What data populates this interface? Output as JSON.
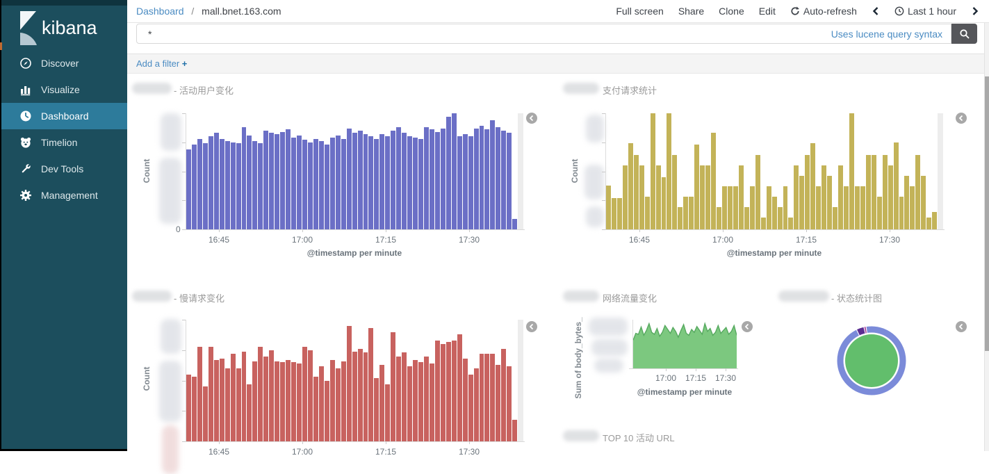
{
  "sidebar": {
    "logo_text": "kibana",
    "items": [
      {
        "label": "Discover",
        "icon": "compass-icon"
      },
      {
        "label": "Visualize",
        "icon": "bar-chart-icon"
      },
      {
        "label": "Dashboard",
        "icon": "dashboard-gauge-icon"
      },
      {
        "label": "Timelion",
        "icon": "bear-icon"
      },
      {
        "label": "Dev Tools",
        "icon": "wrench-icon"
      },
      {
        "label": "Management",
        "icon": "gear-icon"
      }
    ],
    "selected_item": "Dashboard",
    "colors": {
      "bg": "#1C4E5D",
      "selected_bg": "#2D7B9B"
    }
  },
  "topbar": {
    "breadcrumb": {
      "section": "Dashboard",
      "separator": "/",
      "current": "mall.bnet.163.com"
    },
    "actions": [
      {
        "label": "Full screen"
      },
      {
        "label": "Share"
      },
      {
        "label": "Clone"
      },
      {
        "label": "Edit"
      },
      {
        "label": "Auto-refresh",
        "icon": "refresh-icon"
      }
    ],
    "time_range": {
      "label": "Last 1 hour",
      "icon": "clock-icon",
      "prev_icon": "chevron-left-icon",
      "next_icon": "chevron-right-icon"
    }
  },
  "search": {
    "value": "*",
    "hint": "Uses lucene query syntax",
    "button_icon": "search-icon"
  },
  "filter_bar": {
    "add_label": "Add a filter",
    "plus": "+"
  },
  "panels": [
    {
      "title": "- 活动用户变化",
      "redacted_prefix": true
    },
    {
      "title": "支付请求统计",
      "redacted_prefix": true
    },
    {
      "title": "- 慢请求变化",
      "redacted_prefix": true
    },
    {
      "title": "网络流量变化",
      "redacted_prefix": true
    },
    {
      "title": "- 状态统计图",
      "redacted_prefix": true
    },
    {
      "title": "TOP 10 活动 URL",
      "redacted_prefix": true
    }
  ],
  "chart_data": [
    {
      "type": "bar",
      "title": "- 活动用户变化",
      "color": "#6B6FC6",
      "ylabel": "Count",
      "y_origin_label": "0",
      "x_ticks": [
        "16:45",
        "17:00",
        "17:15",
        "17:30"
      ],
      "xlabel": "@timestamp per minute",
      "values": [
        69,
        73,
        78,
        74,
        80,
        83,
        78,
        76,
        75,
        74,
        88,
        81,
        76,
        74,
        85,
        83,
        82,
        84,
        86,
        79,
        81,
        77,
        75,
        78,
        76,
        73,
        79,
        81,
        78,
        87,
        83,
        85,
        82,
        80,
        78,
        82,
        80,
        85,
        88,
        83,
        80,
        79,
        78,
        88,
        86,
        84,
        87,
        97,
        100,
        80,
        82,
        80,
        87,
        89,
        86,
        94,
        88,
        85,
        83,
        9
      ]
    },
    {
      "type": "bar",
      "title": "支付请求统计",
      "color": "#C3B358",
      "ylabel": "Count",
      "x_ticks": [
        "16:45",
        "17:00",
        "17:15",
        "17:30"
      ],
      "xlabel": "@timestamp per minute",
      "values": [
        38,
        27,
        27,
        55,
        74,
        64,
        55,
        28,
        100,
        55,
        45,
        100,
        64,
        19,
        28,
        28,
        73,
        55,
        55,
        83,
        19,
        37,
        37,
        37,
        55,
        19,
        37,
        64,
        10,
        37,
        28,
        19,
        37,
        10,
        55,
        46,
        64,
        74,
        37,
        55,
        46,
        19,
        55,
        37,
        100,
        37,
        37,
        64,
        64,
        28,
        64,
        55,
        75,
        28,
        46,
        37,
        64,
        46,
        10,
        15
      ]
    },
    {
      "type": "bar",
      "title": "- 慢请求变化",
      "color": "#C8625F",
      "ylabel": "Count",
      "x_ticks": [
        "16:45",
        "17:00",
        "17:15",
        "17:30"
      ],
      "xlabel": "@timestamp per minute",
      "values": [
        55,
        53,
        78,
        45,
        78,
        67,
        68,
        60,
        72,
        60,
        74,
        47,
        66,
        78,
        70,
        75,
        66,
        65,
        67,
        65,
        64,
        78,
        75,
        53,
        62,
        50,
        67,
        60,
        66,
        95,
        74,
        76,
        73,
        93,
        52,
        63,
        47,
        90,
        70,
        73,
        62,
        67,
        65,
        70,
        64,
        83,
        80,
        82,
        83,
        88,
        68,
        55,
        60,
        72,
        72,
        72,
        63,
        76,
        62,
        18
      ]
    },
    {
      "type": "area",
      "title": "网络流量变化",
      "fill_color": "#7CC87F",
      "line_color": "#56A95F",
      "ylabel": "Sum of body_bytes_",
      "x_ticks": [
        "17:00",
        "17:15",
        "17:30"
      ],
      "xlabel": "@timestamp per minute",
      "values": [
        58,
        72,
        70,
        85,
        68,
        78,
        92,
        74,
        70,
        82,
        66,
        74,
        88,
        80,
        72,
        84,
        76,
        64,
        78,
        90,
        72,
        68,
        80,
        74,
        86,
        78,
        70,
        92,
        76,
        82,
        68,
        74,
        88,
        72,
        78,
        84,
        70,
        76,
        88,
        68
      ]
    },
    {
      "type": "pie",
      "title": "- 状态统计图",
      "slices": [
        {
          "label": "segment-main",
          "pct": 92.5,
          "color": "#7B8BD9"
        },
        {
          "label": "segment-2",
          "pct": 3.2,
          "color": "#5C2D91"
        },
        {
          "label": "segment-3",
          "pct": 0.6,
          "color": "#B0368F"
        }
      ],
      "center_color": "#62BE6C"
    }
  ]
}
